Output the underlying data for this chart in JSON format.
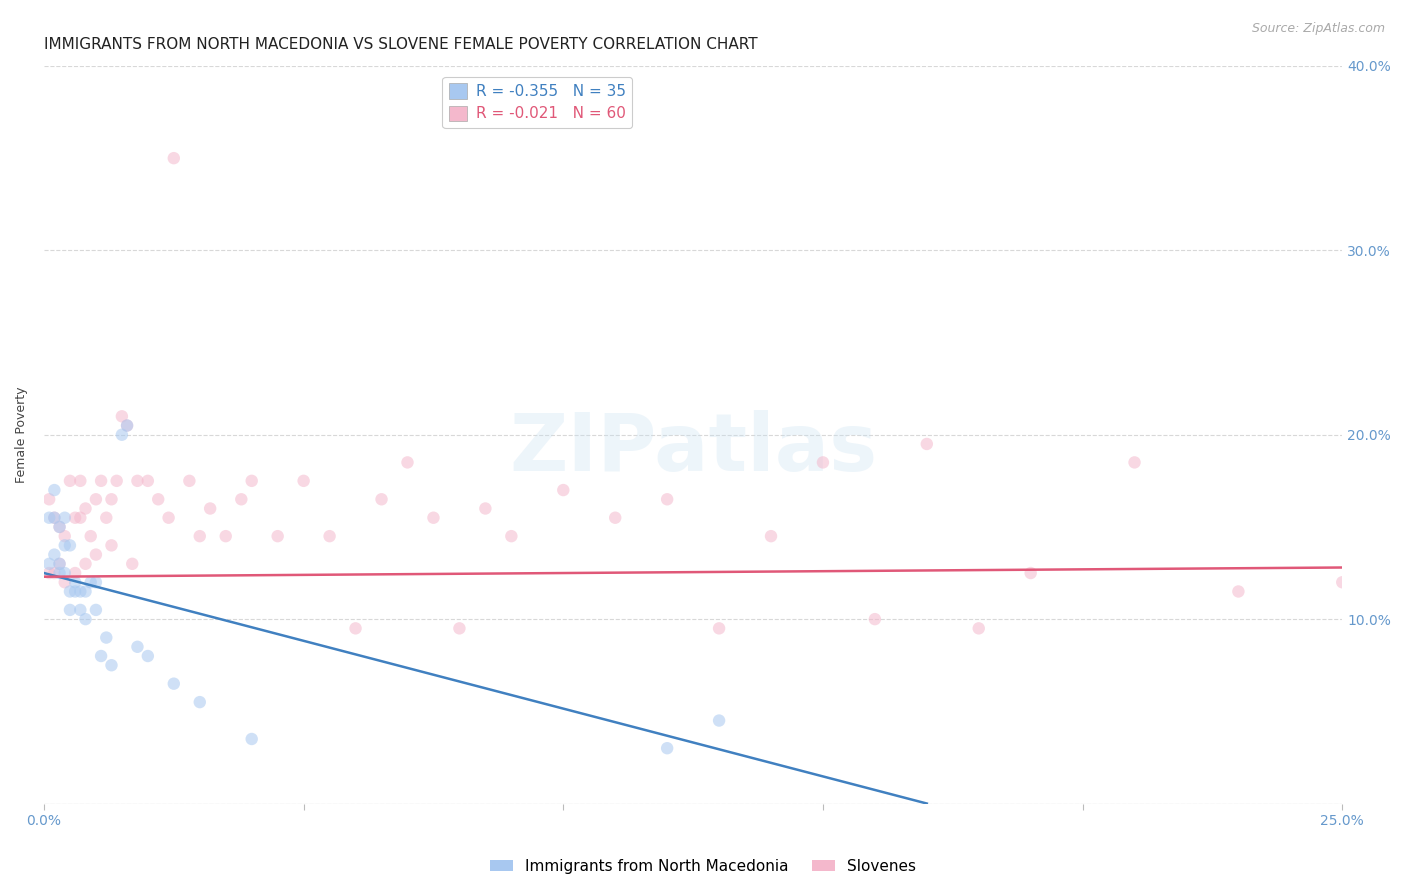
{
  "title": "IMMIGRANTS FROM NORTH MACEDONIA VS SLOVENE FEMALE POVERTY CORRELATION CHART",
  "source": "Source: ZipAtlas.com",
  "ylabel": "Female Poverty",
  "xlim": [
    0.0,
    0.25
  ],
  "ylim": [
    0.0,
    0.4
  ],
  "xticks": [
    0.0,
    0.05,
    0.1,
    0.15,
    0.2,
    0.25
  ],
  "xticklabels": [
    "0.0%",
    "",
    "",
    "",
    "",
    "25.0%"
  ],
  "yticks": [
    0.0,
    0.1,
    0.2,
    0.3,
    0.4
  ],
  "yticklabels": [
    "",
    "10.0%",
    "20.0%",
    "30.0%",
    "40.0%"
  ],
  "grid_color": "#d8d8d8",
  "background_color": "#ffffff",
  "watermark_text": "ZIPatlas",
  "legend_entries": [
    {
      "label": "R = -0.355   N = 35",
      "color": "#a8c8f0"
    },
    {
      "label": "R = -0.021   N = 60",
      "color": "#f4b8cc"
    }
  ],
  "series1_label": "Immigrants from North Macedonia",
  "series1_color": "#a8c8f0",
  "series1_trend_color": "#4080c0",
  "series2_label": "Slovenes",
  "series2_color": "#f4b8cc",
  "series2_trend_color": "#e05878",
  "series1_x": [
    0.001,
    0.001,
    0.002,
    0.002,
    0.002,
    0.003,
    0.003,
    0.003,
    0.004,
    0.004,
    0.004,
    0.005,
    0.005,
    0.005,
    0.006,
    0.006,
    0.007,
    0.007,
    0.008,
    0.008,
    0.009,
    0.01,
    0.01,
    0.011,
    0.012,
    0.013,
    0.015,
    0.016,
    0.018,
    0.02,
    0.025,
    0.03,
    0.04,
    0.12,
    0.13
  ],
  "series1_y": [
    0.155,
    0.13,
    0.17,
    0.155,
    0.135,
    0.125,
    0.15,
    0.13,
    0.14,
    0.155,
    0.125,
    0.14,
    0.115,
    0.105,
    0.12,
    0.115,
    0.115,
    0.105,
    0.115,
    0.1,
    0.12,
    0.12,
    0.105,
    0.08,
    0.09,
    0.075,
    0.2,
    0.205,
    0.085,
    0.08,
    0.065,
    0.055,
    0.035,
    0.03,
    0.045
  ],
  "series2_x": [
    0.001,
    0.001,
    0.002,
    0.002,
    0.003,
    0.003,
    0.004,
    0.004,
    0.005,
    0.006,
    0.006,
    0.007,
    0.007,
    0.008,
    0.008,
    0.009,
    0.01,
    0.01,
    0.011,
    0.012,
    0.013,
    0.013,
    0.014,
    0.015,
    0.016,
    0.017,
    0.018,
    0.02,
    0.022,
    0.024,
    0.025,
    0.028,
    0.03,
    0.032,
    0.035,
    0.038,
    0.04,
    0.045,
    0.05,
    0.055,
    0.06,
    0.065,
    0.07,
    0.075,
    0.08,
    0.085,
    0.09,
    0.1,
    0.11,
    0.12,
    0.13,
    0.14,
    0.15,
    0.16,
    0.17,
    0.18,
    0.19,
    0.21,
    0.23,
    0.25
  ],
  "series2_y": [
    0.125,
    0.165,
    0.155,
    0.125,
    0.13,
    0.15,
    0.145,
    0.12,
    0.175,
    0.155,
    0.125,
    0.175,
    0.155,
    0.16,
    0.13,
    0.145,
    0.165,
    0.135,
    0.175,
    0.155,
    0.165,
    0.14,
    0.175,
    0.21,
    0.205,
    0.13,
    0.175,
    0.175,
    0.165,
    0.155,
    0.35,
    0.175,
    0.145,
    0.16,
    0.145,
    0.165,
    0.175,
    0.145,
    0.175,
    0.145,
    0.095,
    0.165,
    0.185,
    0.155,
    0.095,
    0.16,
    0.145,
    0.17,
    0.155,
    0.165,
    0.095,
    0.145,
    0.185,
    0.1,
    0.195,
    0.095,
    0.125,
    0.185,
    0.115,
    0.12
  ],
  "title_fontsize": 11,
  "axis_label_fontsize": 9,
  "tick_fontsize": 10,
  "tick_color": "#6699cc",
  "title_color": "#222222",
  "ylabel_color": "#444444",
  "source_fontsize": 9,
  "source_color": "#aaaaaa",
  "marker_size": 80,
  "marker_alpha": 0.55,
  "trend_linewidth": 1.8
}
